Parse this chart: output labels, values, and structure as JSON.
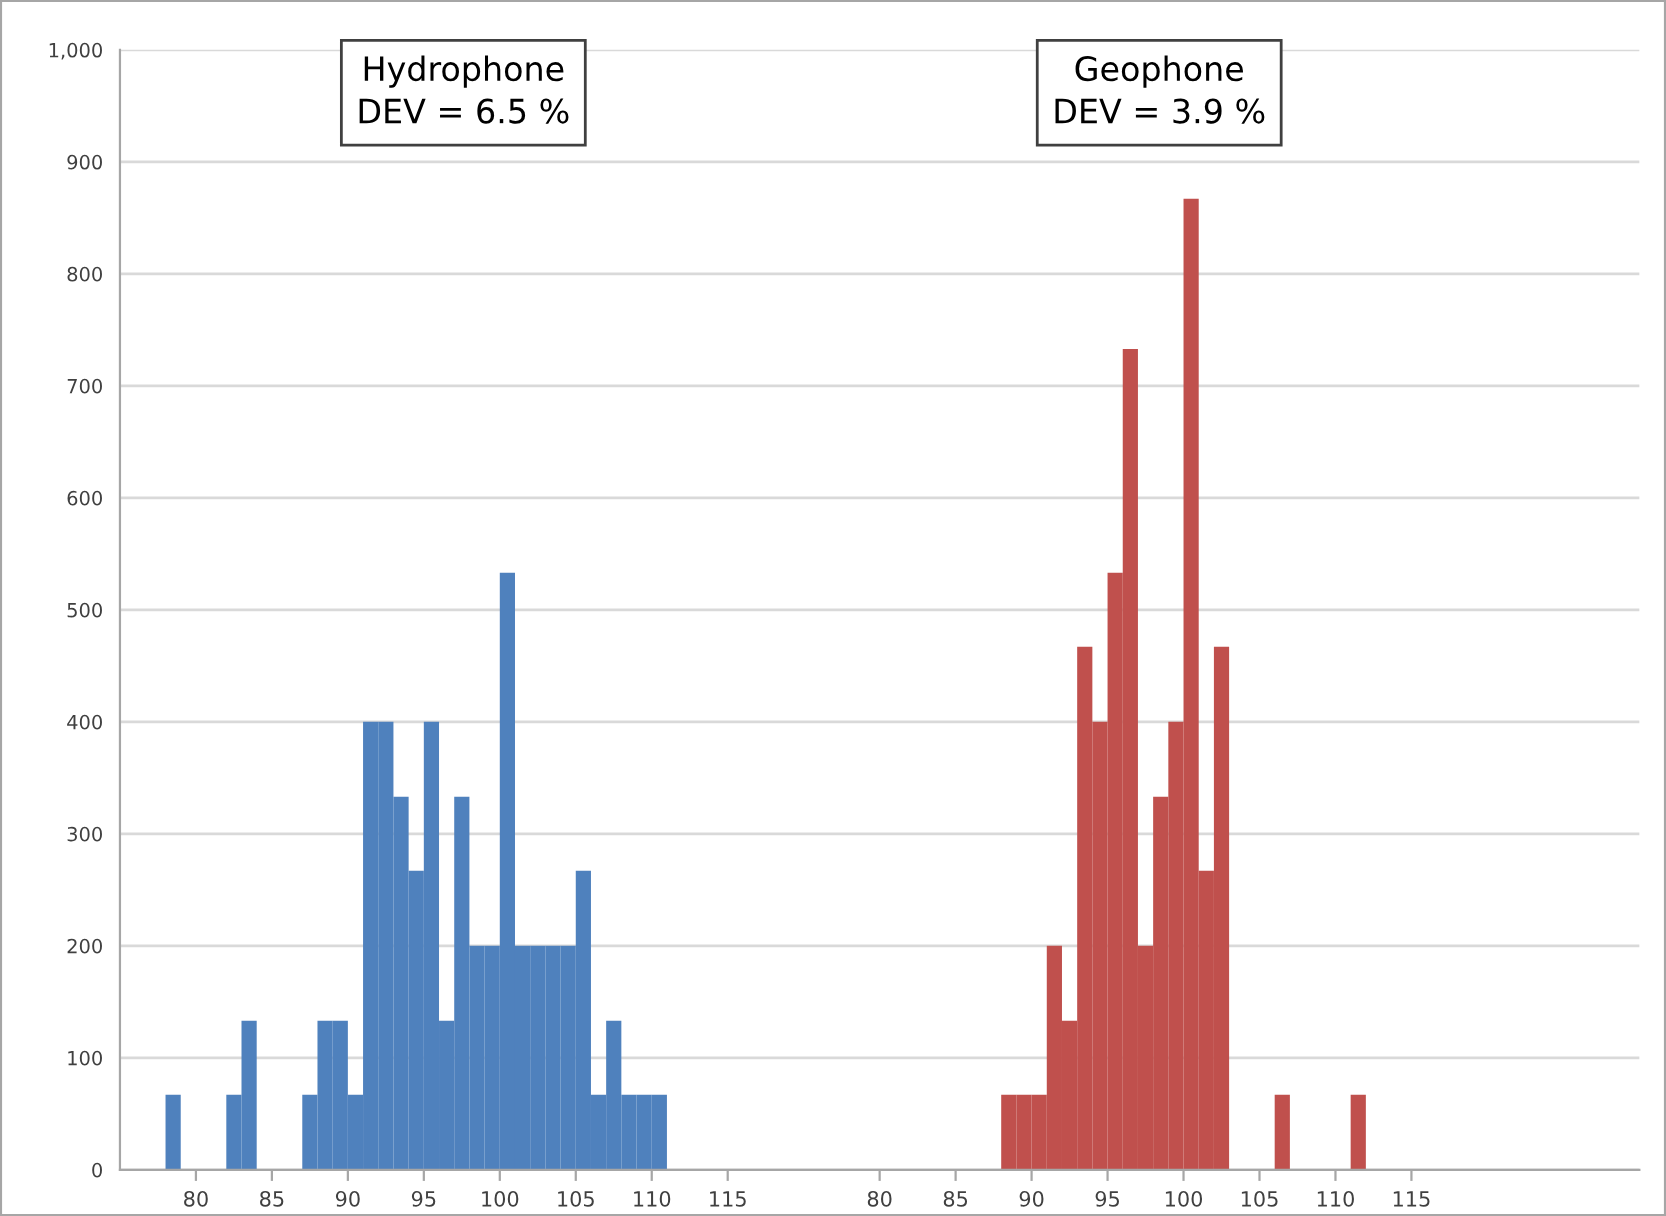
{
  "chart_data": {
    "type": "bar",
    "categories": [
      null,
      null,
      null,
      null,
      null,
      "80",
      null,
      null,
      null,
      null,
      "85",
      null,
      null,
      null,
      null,
      "90",
      null,
      null,
      null,
      null,
      "95",
      null,
      null,
      null,
      null,
      "100",
      null,
      null,
      null,
      null,
      "105",
      null,
      null,
      null,
      null,
      "110",
      null,
      null,
      null,
      null,
      "115",
      null,
      null,
      null,
      null,
      null,
      null,
      null,
      null,
      null,
      "80",
      null,
      null,
      null,
      null,
      "85",
      null,
      null,
      null,
      null,
      "90",
      null,
      null,
      null,
      null,
      "95",
      null,
      null,
      null,
      null,
      "100",
      null,
      null,
      null,
      null,
      "105",
      null,
      null,
      null,
      null,
      "110",
      null,
      null,
      null,
      null,
      "115",
      null,
      null,
      null,
      null,
      null,
      null,
      null,
      null,
      null,
      null,
      null,
      null,
      null,
      null
    ],
    "series": [
      {
        "color": "#4f81bd",
        "values": [
          null,
          null,
          null,
          67,
          null,
          null,
          null,
          67,
          133,
          null,
          null,
          null,
          67,
          133,
          133,
          67,
          400,
          400,
          333,
          267,
          400,
          133,
          333,
          200,
          200,
          533,
          200,
          200,
          200,
          200,
          267,
          67,
          133,
          67,
          67,
          67,
          null,
          null,
          null,
          null,
          null,
          null,
          null,
          null,
          null,
          null,
          null,
          null,
          null,
          null,
          null,
          null,
          null,
          null,
          null,
          null,
          null,
          null,
          null,
          null,
          null,
          null,
          null,
          null,
          null,
          null,
          null,
          null,
          null,
          null,
          null,
          null,
          null,
          null,
          null,
          null,
          null,
          null,
          null,
          null,
          null,
          null,
          null,
          null,
          null,
          null,
          null,
          null,
          null,
          null,
          null,
          null,
          null,
          null,
          null,
          null,
          null,
          null,
          null,
          null
        ]
      },
      {
        "color": "#c0504d",
        "values": [
          null,
          null,
          null,
          null,
          null,
          null,
          null,
          null,
          null,
          null,
          null,
          null,
          null,
          null,
          null,
          null,
          null,
          null,
          null,
          null,
          null,
          null,
          null,
          null,
          null,
          null,
          null,
          null,
          null,
          null,
          null,
          null,
          null,
          null,
          null,
          null,
          null,
          null,
          null,
          null,
          null,
          null,
          null,
          null,
          null,
          null,
          null,
          null,
          null,
          null,
          null,
          null,
          null,
          null,
          null,
          null,
          null,
          null,
          67,
          67,
          67,
          200,
          133,
          467,
          400,
          533,
          733,
          200,
          333,
          400,
          867,
          267,
          467,
          null,
          null,
          null,
          67,
          null,
          null,
          null,
          null,
          67,
          null,
          null,
          null,
          null,
          null,
          null,
          null,
          null,
          null,
          null,
          null,
          null,
          null,
          null,
          null,
          null,
          null,
          null
        ]
      }
    ],
    "ylim": [
      0,
      1000
    ],
    "yticks": [
      0,
      100,
      200,
      300,
      400,
      500,
      600,
      700,
      800,
      900,
      {
        "value": 1000,
        "label": "1,000"
      }
    ],
    "grid": "y",
    "annotations": [
      "Hydrophone\nDEV = 6.5 %",
      "Geophone\nDEV = 3.9 %"
    ]
  }
}
